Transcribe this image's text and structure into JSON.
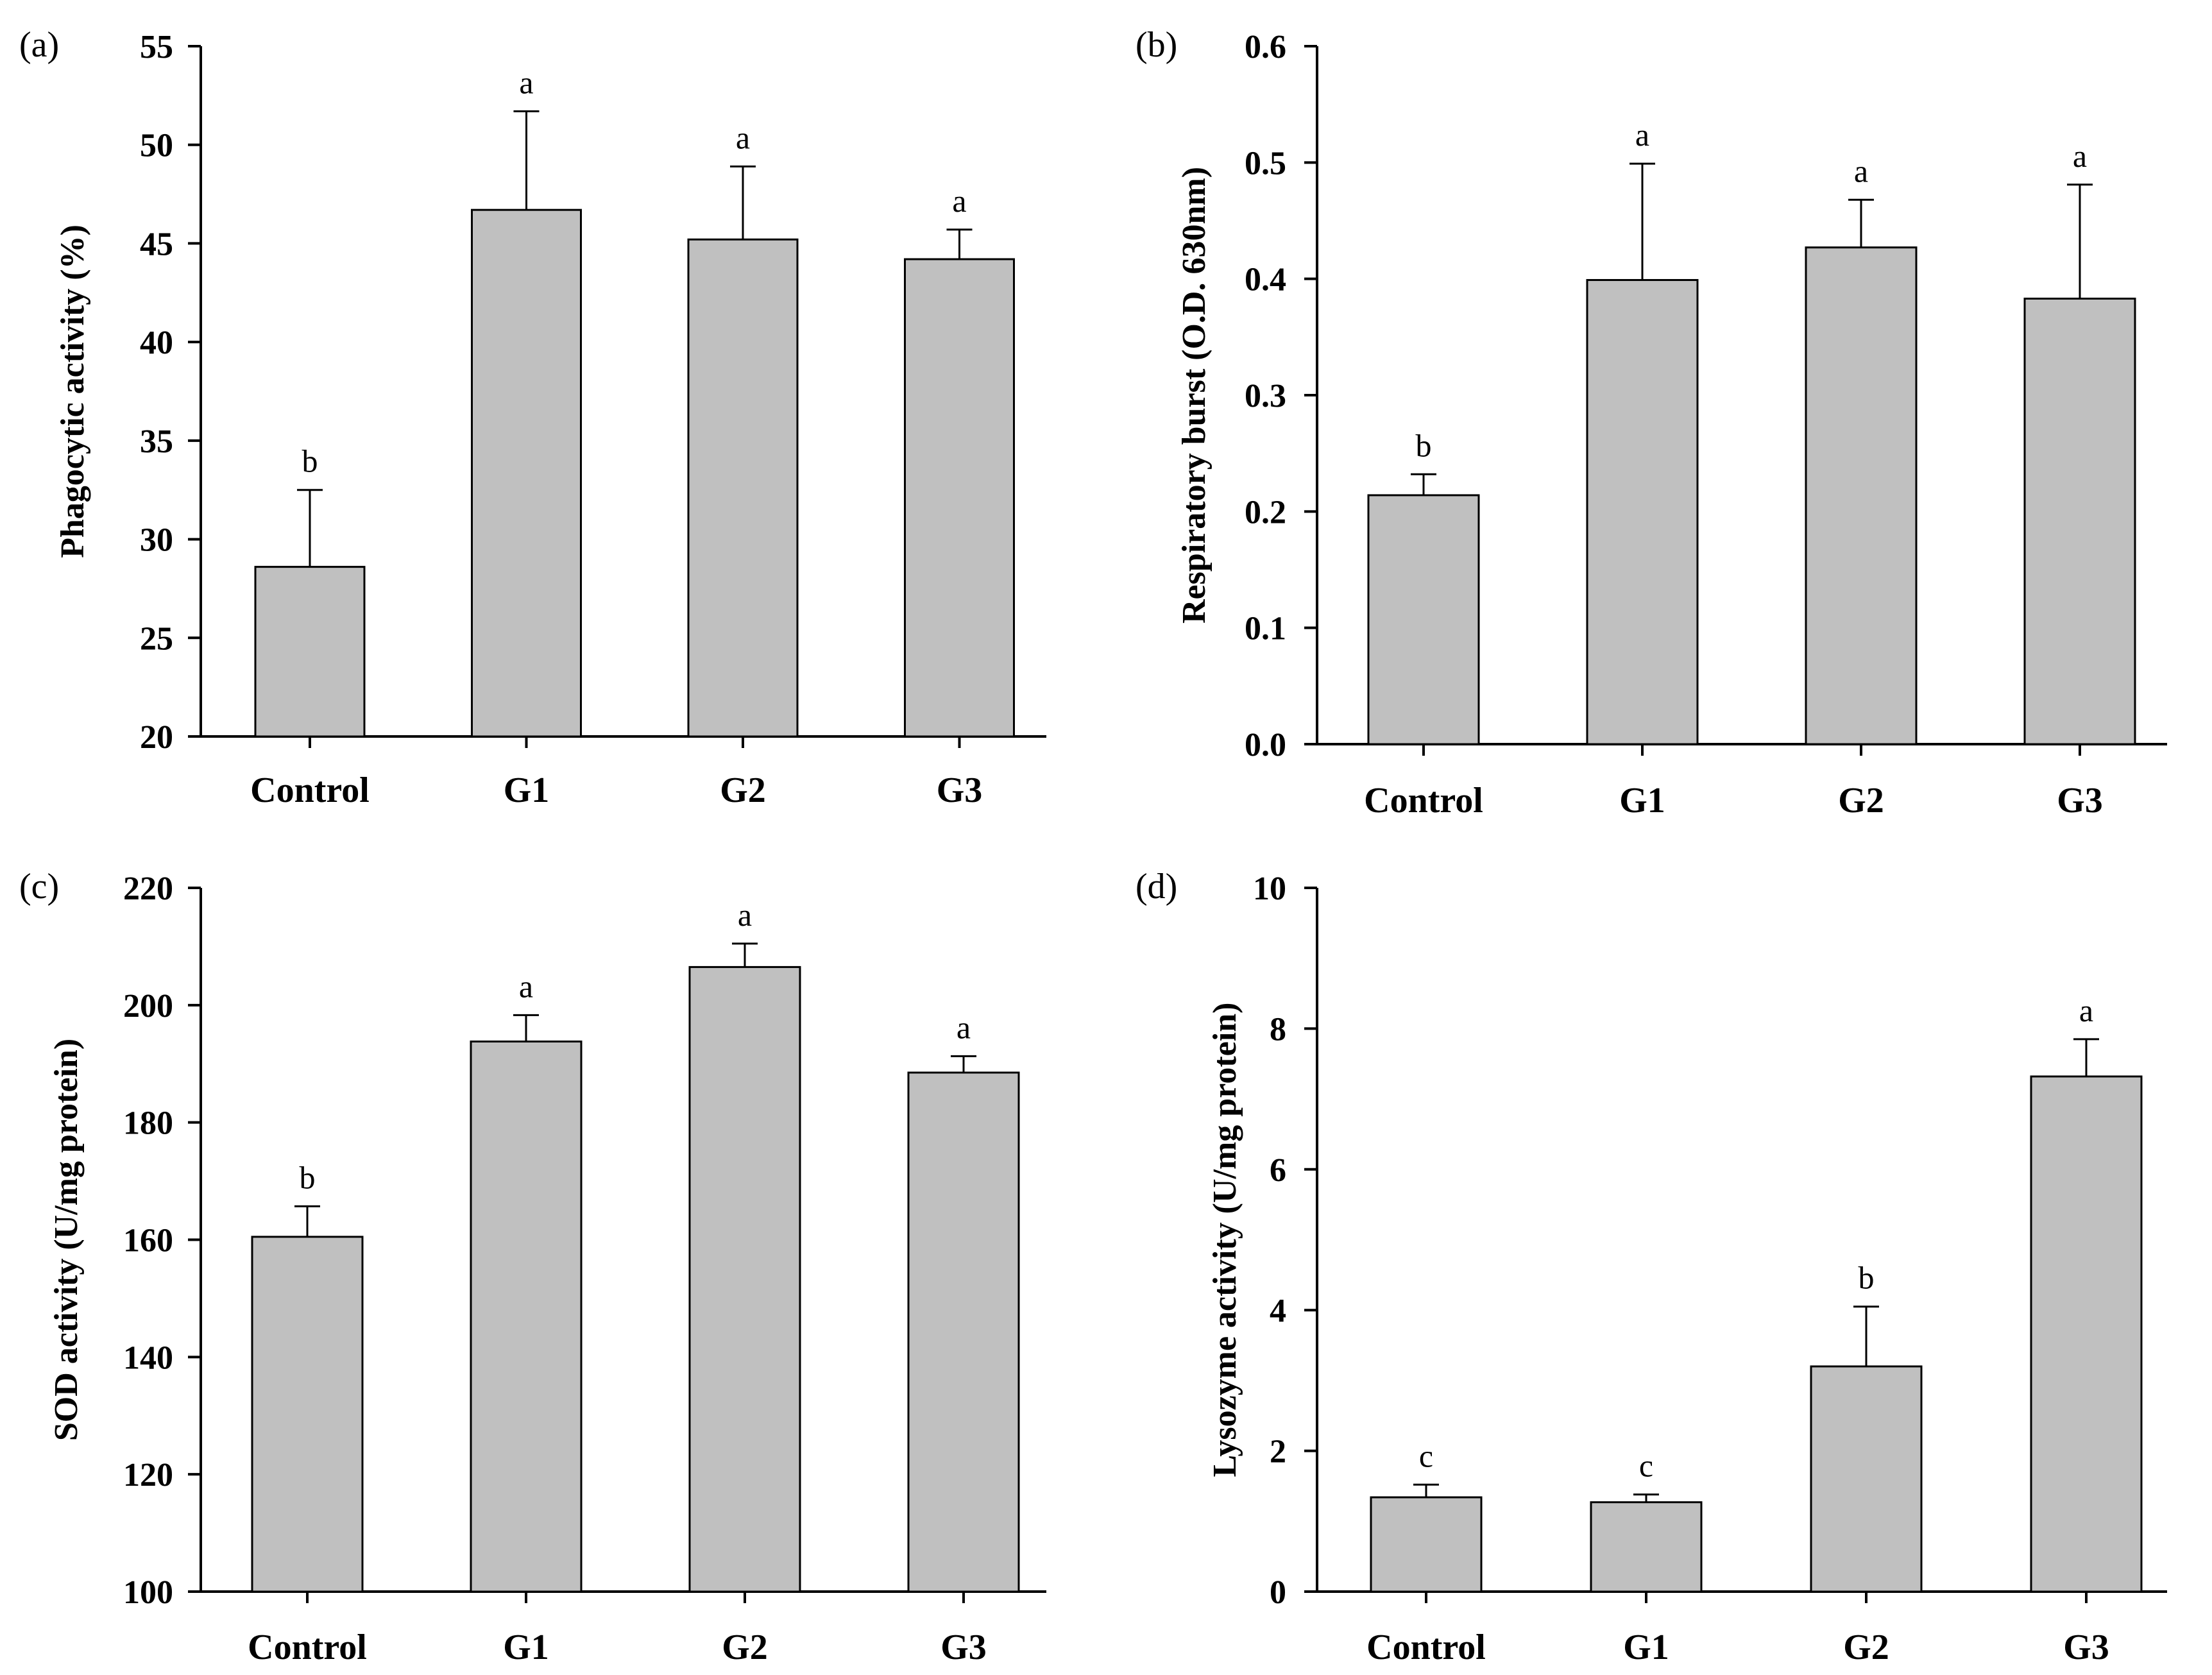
{
  "colors": {
    "bar_fill": "#c0c0c0",
    "bar_stroke": "#000000",
    "axis": "#000000",
    "background": "#ffffff"
  },
  "panel_labels": [
    "(a)",
    "(b)",
    "(c)",
    "(d)"
  ],
  "chart_data": [
    {
      "type": "bar",
      "panel": "(a)",
      "categories": [
        "Control",
        "G1",
        "G2",
        "G3"
      ],
      "values": [
        28.6,
        46.7,
        45.2,
        44.2
      ],
      "errors": [
        3.9,
        5.0,
        3.7,
        1.5
      ],
      "significance": [
        "b",
        "a",
        "a",
        "a"
      ],
      "ylabel": "Phagocytic activity (%)",
      "xlabel": "",
      "ylim": [
        20,
        55
      ],
      "yticks": [
        20,
        25,
        30,
        35,
        40,
        45,
        50,
        55
      ],
      "ytick_labels": [
        "20",
        "25",
        "30",
        "35",
        "40",
        "45",
        "50",
        "55"
      ]
    },
    {
      "type": "bar",
      "panel": "(b)",
      "categories": [
        "Control",
        "G1",
        "G2",
        "G3"
      ],
      "values": [
        0.214,
        0.399,
        0.427,
        0.383
      ],
      "errors": [
        0.018,
        0.1,
        0.041,
        0.098
      ],
      "significance": [
        "b",
        "a",
        "a",
        "a"
      ],
      "ylabel": "Respiratory burst (O.D. 630nm)",
      "xlabel": "",
      "ylim": [
        0,
        0.6
      ],
      "yticks": [
        0,
        0.1,
        0.2,
        0.3,
        0.4,
        0.5,
        0.6
      ],
      "ytick_labels": [
        "0.0",
        "0.1",
        "0.2",
        "0.3",
        "0.4",
        "0.5",
        "0.6"
      ]
    },
    {
      "type": "bar",
      "panel": "(c)",
      "categories": [
        "Control",
        "G1",
        "G2",
        "G3"
      ],
      "values": [
        160.5,
        193.8,
        206.5,
        188.5
      ],
      "errors": [
        5.2,
        4.5,
        4.0,
        2.8
      ],
      "significance": [
        "b",
        "a",
        "a",
        "a"
      ],
      "ylabel": "SOD activity (U/mg protein)",
      "xlabel": "",
      "ylim": [
        100,
        220
      ],
      "yticks": [
        100,
        120,
        140,
        160,
        180,
        200,
        220
      ],
      "ytick_labels": [
        "100",
        "120",
        "140",
        "160",
        "180",
        "200",
        "220"
      ]
    },
    {
      "type": "bar",
      "panel": "(d)",
      "categories": [
        "Control",
        "G1",
        "G2",
        "G3"
      ],
      "values": [
        1.34,
        1.27,
        3.2,
        7.32
      ],
      "errors": [
        0.18,
        0.11,
        0.85,
        0.53
      ],
      "significance": [
        "c",
        "c",
        "b",
        "a"
      ],
      "ylabel": "Lysozyme activity (U/mg protein)",
      "xlabel": "",
      "ylim": [
        0,
        10
      ],
      "yticks": [
        0,
        2,
        4,
        6,
        8,
        10
      ],
      "ytick_labels": [
        "0",
        "2",
        "4",
        "6",
        "8",
        "10"
      ]
    }
  ]
}
